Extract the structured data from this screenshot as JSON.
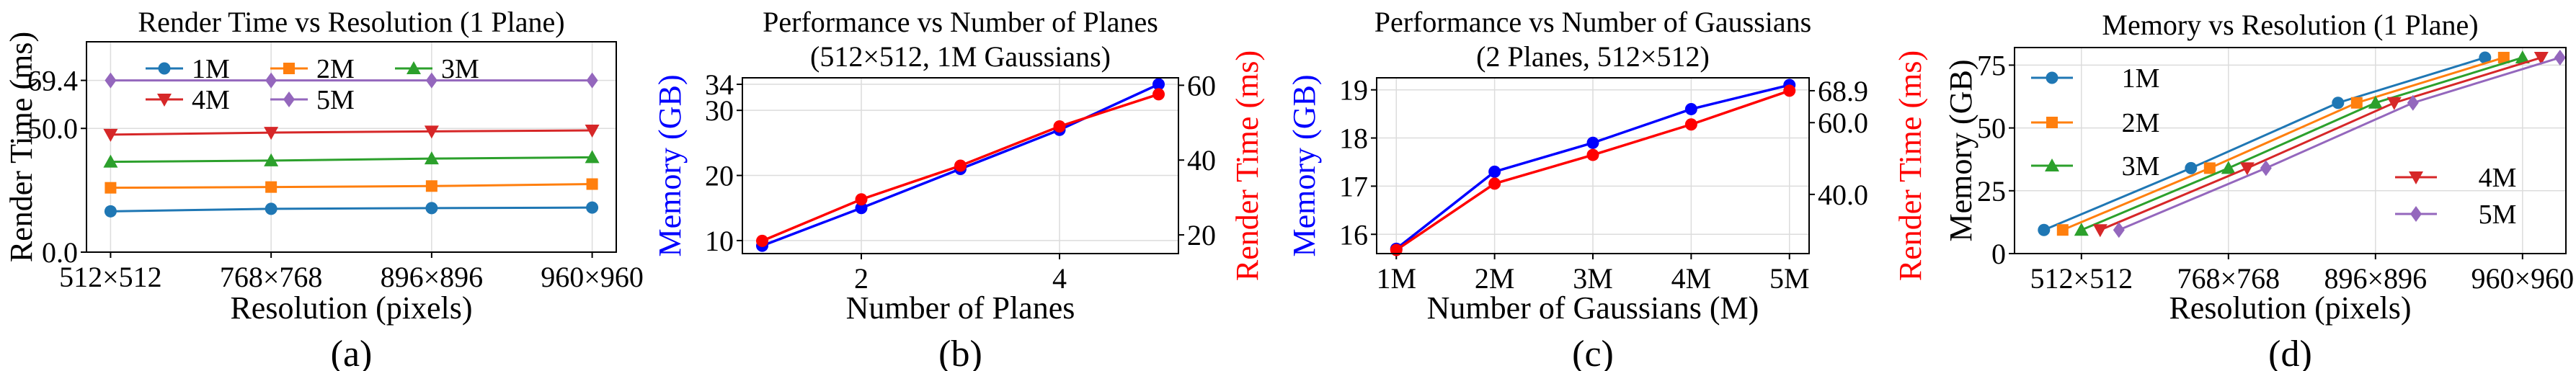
{
  "chart_data": [
    {
      "id": "a",
      "type": "line",
      "title": "Render Time vs Resolution (1 Plane)",
      "xlabel": "Resolution (pixels)",
      "ylabel": "Render Time (ms)",
      "caption": "(a)",
      "categories": [
        "512×512",
        "768×768",
        "896×896",
        "960×960"
      ],
      "ylim": [
        0,
        85
      ],
      "yticks": [
        "0.0",
        "50.0",
        "69.4"
      ],
      "ytick_values": [
        0,
        50,
        69.4
      ],
      "grid": true,
      "legend": "top-center-3col",
      "series": [
        {
          "name": "1M",
          "color": "#1f77b4",
          "marker": "circle",
          "values": [
            16.5,
            17.5,
            17.8,
            18.0
          ]
        },
        {
          "name": "2M",
          "color": "#ff7f0e",
          "marker": "square",
          "values": [
            26.0,
            26.3,
            26.7,
            27.5
          ]
        },
        {
          "name": "3M",
          "color": "#2ca02c",
          "marker": "triangle-up",
          "values": [
            36.5,
            37.0,
            37.8,
            38.3
          ]
        },
        {
          "name": "4M",
          "color": "#d62728",
          "marker": "triangle-down",
          "values": [
            47.5,
            48.3,
            48.8,
            49.2
          ]
        },
        {
          "name": "5M",
          "color": "#9467bd",
          "marker": "diamond",
          "values": [
            69.4,
            69.4,
            69.4,
            69.4
          ]
        }
      ]
    },
    {
      "id": "b",
      "type": "line",
      "title": "Performance vs Number of Planes",
      "subtitle": "(512×512, 1M Gaussians)",
      "xlabel": "Number of Planes",
      "ylabel": "Memory (GB)",
      "ylabel_right": "Render Time (ms)",
      "caption": "(b)",
      "x": [
        1,
        2,
        3,
        4,
        5
      ],
      "xticks": [
        "2",
        "4"
      ],
      "xtick_values": [
        2,
        4
      ],
      "xlim": [
        0.8,
        5.2
      ],
      "ylim": [
        8,
        35
      ],
      "yticks": [
        "10",
        "20",
        "30",
        "34"
      ],
      "ytick_values": [
        10,
        20,
        30,
        34
      ],
      "ylim_right": [
        15,
        62
      ],
      "yticks_right": [
        "20",
        "40",
        "60"
      ],
      "ytick_values_right": [
        20,
        40,
        60
      ],
      "grid": true,
      "series": [
        {
          "name": "Memory",
          "axis": "left",
          "color": "#0000ff",
          "marker": "circle",
          "values": [
            9.2,
            15.0,
            21.0,
            27.0,
            34.0
          ]
        },
        {
          "name": "Render Time",
          "axis": "right",
          "color": "#ff0000",
          "marker": "circle",
          "values": [
            18.4,
            29.5,
            38.5,
            49.0,
            57.6
          ]
        }
      ]
    },
    {
      "id": "c",
      "type": "line",
      "title": "Performance vs Number of Gaussians",
      "subtitle": "(2 Planes, 512×512)",
      "xlabel": "Number of Gaussians (M)",
      "ylabel": "Memory (GB)",
      "ylabel_right": "Render Time (ms)",
      "caption": "(c)",
      "categories": [
        "1M",
        "2M",
        "3M",
        "4M",
        "5M"
      ],
      "ylim": [
        15.6,
        19.25
      ],
      "yticks": [
        "16",
        "17",
        "18",
        "19"
      ],
      "ytick_values": [
        16,
        17,
        18,
        19
      ],
      "ylim_right": [
        23.5,
        72.5
      ],
      "yticks_right": [
        "40.0",
        "60.0",
        "68.9"
      ],
      "ytick_values_right": [
        40,
        60,
        68.9
      ],
      "grid": true,
      "series": [
        {
          "name": "Memory",
          "axis": "left",
          "color": "#0000ff",
          "marker": "circle",
          "values": [
            15.7,
            17.3,
            17.9,
            18.6,
            19.1
          ]
        },
        {
          "name": "Render Time",
          "axis": "right",
          "color": "#ff0000",
          "marker": "circle",
          "values": [
            24.5,
            43.0,
            51.0,
            59.5,
            68.9
          ]
        }
      ]
    },
    {
      "id": "d",
      "type": "line",
      "title": "Memory vs Resolution (1 Plane)",
      "xlabel": "Resolution (pixels)",
      "ylabel": "Memory (GB)",
      "caption": "(d)",
      "categories": [
        "512×512",
        "768×768",
        "896×896",
        "960×960"
      ],
      "ylim": [
        0,
        82
      ],
      "yticks": [
        "0",
        "25",
        "50",
        "75"
      ],
      "ytick_values": [
        0,
        25,
        50,
        75
      ],
      "grid": true,
      "legend": "left-and-right",
      "series": [
        {
          "name": "1M",
          "color": "#1f77b4",
          "marker": "circle",
          "values": [
            9.4,
            34.0,
            60.0,
            78.0
          ]
        },
        {
          "name": "2M",
          "color": "#ff7f0e",
          "marker": "square",
          "values": [
            9.4,
            34.0,
            60.0,
            78.0
          ]
        },
        {
          "name": "3M",
          "color": "#2ca02c",
          "marker": "triangle-up",
          "values": [
            9.4,
            34.0,
            60.0,
            78.0
          ]
        },
        {
          "name": "4M",
          "color": "#d62728",
          "marker": "triangle-down",
          "values": [
            9.4,
            34.0,
            60.0,
            78.0
          ]
        },
        {
          "name": "5M",
          "color": "#9467bd",
          "marker": "diamond",
          "values": [
            9.4,
            34.0,
            60.0,
            78.0
          ]
        }
      ]
    }
  ]
}
